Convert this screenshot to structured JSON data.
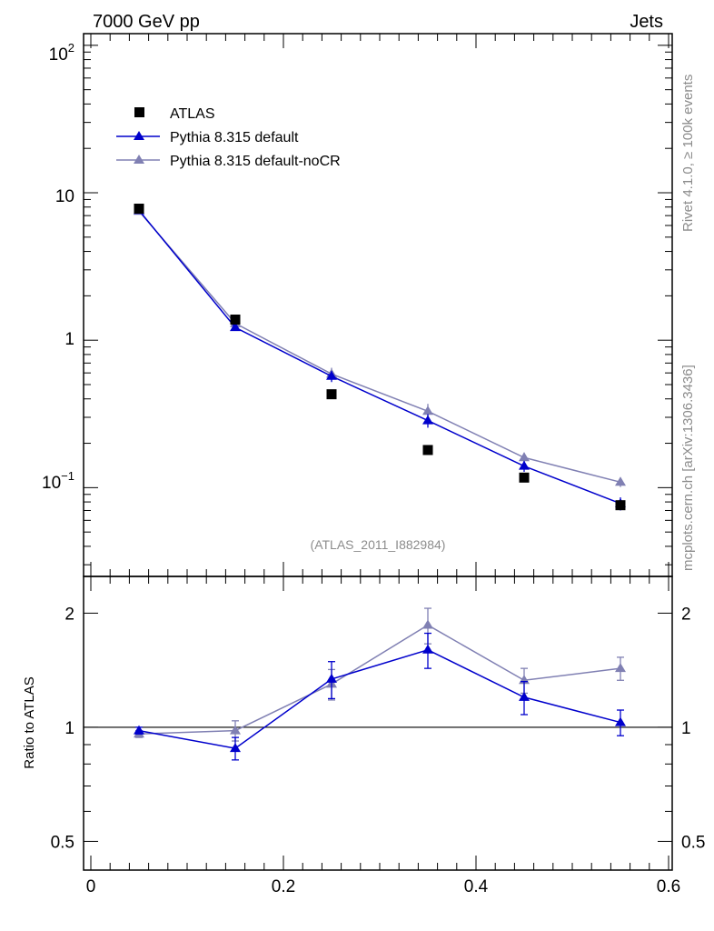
{
  "header": {
    "left": "7000 GeV pp",
    "right": "Jets"
  },
  "side_labels": {
    "top": "Rivet 4.1.0, ≥ 100k events",
    "bottom": "mcplots.cern.ch [arXiv:1306.3436]"
  },
  "chart_data": {
    "type": "scatter",
    "analysis_label": "(ATLAS_2011_I882984)",
    "xlim": [
      0,
      0.6
    ],
    "x_ticks": [
      "0",
      "0.2",
      "0.4",
      "0.6"
    ],
    "x": [
      0.05,
      0.15,
      0.25,
      0.35,
      0.45,
      0.55
    ],
    "main": {
      "yscale": "log",
      "ylim": [
        0.025,
        120
      ],
      "y_tick_labels": {
        "hundred_base": "10",
        "hundred_exp": "2",
        "ten": "10",
        "one": "1",
        "tenth_base": "10",
        "tenth_exp": "−1"
      },
      "series": [
        {
          "name": "ATLAS",
          "color": "#000000",
          "marker": "square",
          "values": [
            7.8,
            1.38,
            0.43,
            0.18,
            0.117,
            0.076
          ],
          "err": [
            0,
            0,
            0,
            0,
            0,
            0
          ]
        },
        {
          "name": "Pythia 8.315 default",
          "color": "#0000cc",
          "marker": "triangle",
          "values": [
            7.6,
            1.22,
            0.57,
            0.285,
            0.14,
            0.078
          ],
          "err": [
            0.1,
            0.03,
            0.05,
            0.03,
            0.012,
            0.008
          ]
        },
        {
          "name": "Pythia 8.315 default-noCR",
          "color": "#8080b3",
          "marker": "triangle",
          "values": [
            7.5,
            1.3,
            0.59,
            0.33,
            0.16,
            0.109
          ],
          "err": [
            0.1,
            0.04,
            0.06,
            0.04,
            0.013,
            0.008
          ]
        }
      ]
    },
    "ratio": {
      "ylabel": "Ratio to ATLAS",
      "yscale": "log",
      "ylim": [
        0.42,
        2.5
      ],
      "y_ticks": [
        "0.5",
        "1",
        "2"
      ],
      "series": [
        {
          "name": "Pythia 8.315 default",
          "color": "#0000cc",
          "values": [
            0.98,
            0.88,
            1.34,
            1.6,
            1.2,
            1.03
          ],
          "err": [
            0.02,
            0.06,
            0.15,
            0.17,
            0.12,
            0.08
          ]
        },
        {
          "name": "Pythia 8.315 default-noCR",
          "color": "#8080b3",
          "values": [
            0.96,
            0.98,
            1.3,
            1.86,
            1.33,
            1.43
          ],
          "err": [
            0.02,
            0.06,
            0.12,
            0.2,
            0.1,
            0.1
          ]
        }
      ]
    }
  }
}
